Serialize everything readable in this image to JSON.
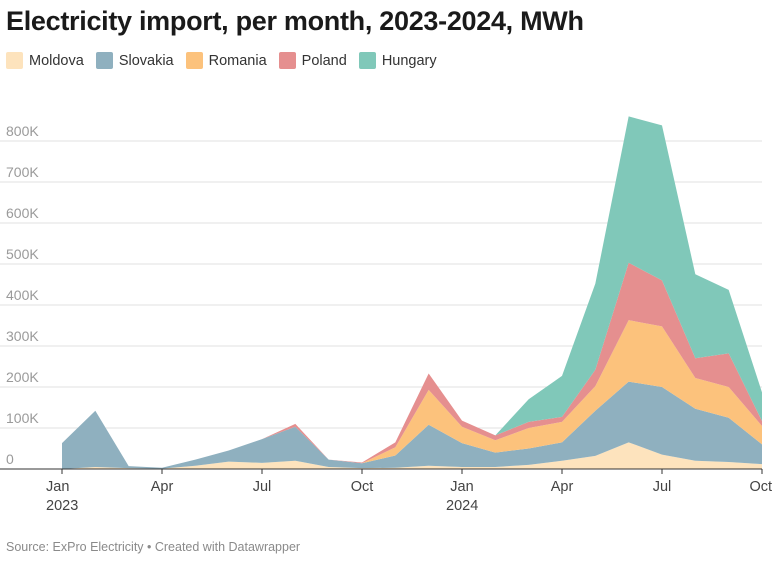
{
  "header": {
    "title": "Electricity import, per month, 2023-2024, MWh"
  },
  "legend": [
    {
      "label": "Moldova",
      "color": "#fde3bd"
    },
    {
      "label": "Slovakia",
      "color": "#8fb0bf"
    },
    {
      "label": "Romania",
      "color": "#fcc27c"
    },
    {
      "label": "Poland",
      "color": "#e58f8f"
    },
    {
      "label": "Hungary",
      "color": "#80c8b9"
    }
  ],
  "footer": {
    "source_text": "Source: ExPro Electricity • Created with Datawrapper"
  },
  "chart_data": {
    "type": "area",
    "stacked": true,
    "title": "Electricity import, per month, 2023-2024, MWh",
    "xlabel": "",
    "ylabel": "",
    "ylim": [
      0,
      900000
    ],
    "y_ticks": [
      0,
      100000,
      200000,
      300000,
      400000,
      500000,
      600000,
      700000,
      800000
    ],
    "y_tick_labels": [
      "0",
      "100K",
      "200K",
      "300K",
      "400K",
      "500K",
      "600K",
      "700K",
      "800K"
    ],
    "x": [
      "Jan 2023",
      "Feb 2023",
      "Mar 2023",
      "Apr 2023",
      "May 2023",
      "Jun 2023",
      "Jul 2023",
      "Aug 2023",
      "Sep 2023",
      "Oct 2023",
      "Nov 2023",
      "Dec 2023",
      "Jan 2024",
      "Feb 2024",
      "Mar 2024",
      "Apr 2024",
      "May 2024",
      "Jun 2024",
      "Jul 2024",
      "Aug 2024",
      "Sep 2024",
      "Oct 2024"
    ],
    "x_ticks": [
      {
        "index": 0,
        "label": "Jan",
        "sublabel": "2023"
      },
      {
        "index": 3,
        "label": "Apr",
        "sublabel": ""
      },
      {
        "index": 6,
        "label": "Jul",
        "sublabel": ""
      },
      {
        "index": 9,
        "label": "Oct",
        "sublabel": ""
      },
      {
        "index": 12,
        "label": "Jan",
        "sublabel": "2024"
      },
      {
        "index": 15,
        "label": "Apr",
        "sublabel": ""
      },
      {
        "index": 18,
        "label": "Jul",
        "sublabel": ""
      },
      {
        "index": 21,
        "label": "Oct",
        "sublabel": ""
      }
    ],
    "series": [
      {
        "name": "Moldova",
        "color": "#fde3bd",
        "values": [
          0,
          5000,
          2000,
          1000,
          8000,
          18000,
          15000,
          20000,
          5000,
          2000,
          3000,
          8000,
          5000,
          5000,
          10000,
          20000,
          32000,
          65000,
          35000,
          20000,
          17000,
          12000
        ]
      },
      {
        "name": "Slovakia",
        "color": "#8fb0bf",
        "values": [
          63000,
          137000,
          5000,
          2000,
          15000,
          27000,
          58000,
          83000,
          18000,
          12000,
          30000,
          100000,
          58000,
          35000,
          40000,
          45000,
          110000,
          148000,
          165000,
          127000,
          108000,
          48000
        ]
      },
      {
        "name": "Romania",
        "color": "#fcc27c",
        "values": [
          0,
          0,
          0,
          0,
          0,
          0,
          0,
          0,
          0,
          0,
          20000,
          85000,
          40000,
          30000,
          50000,
          50000,
          60000,
          150000,
          148000,
          75000,
          75000,
          45000
        ]
      },
      {
        "name": "Poland",
        "color": "#e58f8f",
        "values": [
          0,
          0,
          0,
          0,
          0,
          0,
          0,
          7000,
          0,
          2000,
          12000,
          40000,
          15000,
          12000,
          15000,
          12000,
          40000,
          140000,
          112000,
          48000,
          82000,
          12000
        ]
      },
      {
        "name": "Hungary",
        "color": "#80c8b9",
        "values": [
          0,
          0,
          0,
          0,
          0,
          0,
          0,
          0,
          0,
          0,
          0,
          0,
          0,
          0,
          55000,
          100000,
          210000,
          357000,
          378000,
          205000,
          155000,
          70000
        ]
      }
    ]
  }
}
